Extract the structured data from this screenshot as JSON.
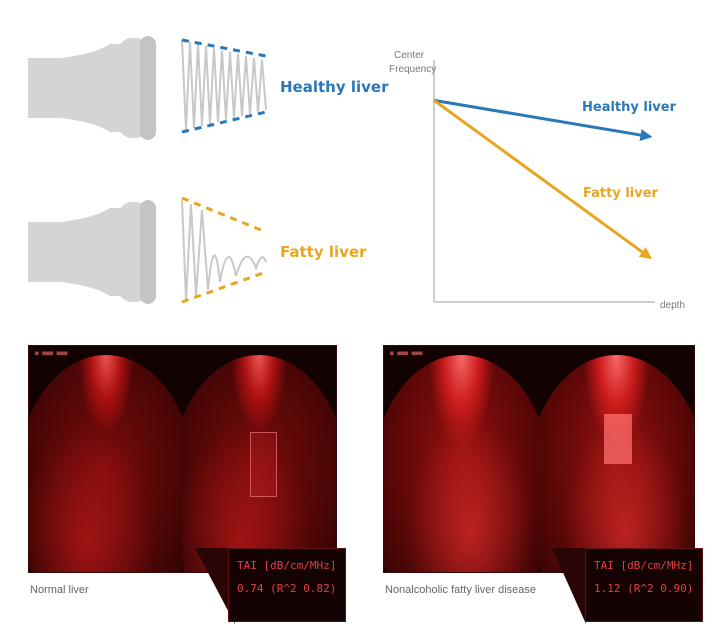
{
  "top_left": {
    "healthy_label": "Healthy liver",
    "fatty_label": "Fatty liver"
  },
  "chart_data": {
    "type": "line",
    "ylabel": "Center Frequency",
    "ylabel_lines": [
      "Center",
      "Frequency"
    ],
    "xlabel": "depth",
    "x": [
      0,
      1
    ],
    "series": [
      {
        "name": "Healthy liver",
        "values": [
          1.0,
          0.82
        ],
        "color": "#2a78b8"
      },
      {
        "name": "Fatty liver",
        "values": [
          1.0,
          0.22
        ],
        "color": "#e8a520"
      }
    ],
    "ylim": [
      0,
      1.2
    ],
    "grid": false
  },
  "images": {
    "normal": {
      "caption": "Normal liver",
      "tai_title": "TAI [dB/cm/MHz]",
      "tai_value": "0.74 (R^2 0.82)"
    },
    "fatty": {
      "caption": "Nonalcoholic fatty liver disease",
      "tai_title": "TAI [dB/cm/MHz]",
      "tai_value": "1.12 (R^2 0.90)"
    }
  },
  "colors": {
    "healthy": "#2a78b8",
    "fatty": "#e8a520",
    "probe": "#d4d4d4",
    "wave": "#c8c8c8"
  }
}
